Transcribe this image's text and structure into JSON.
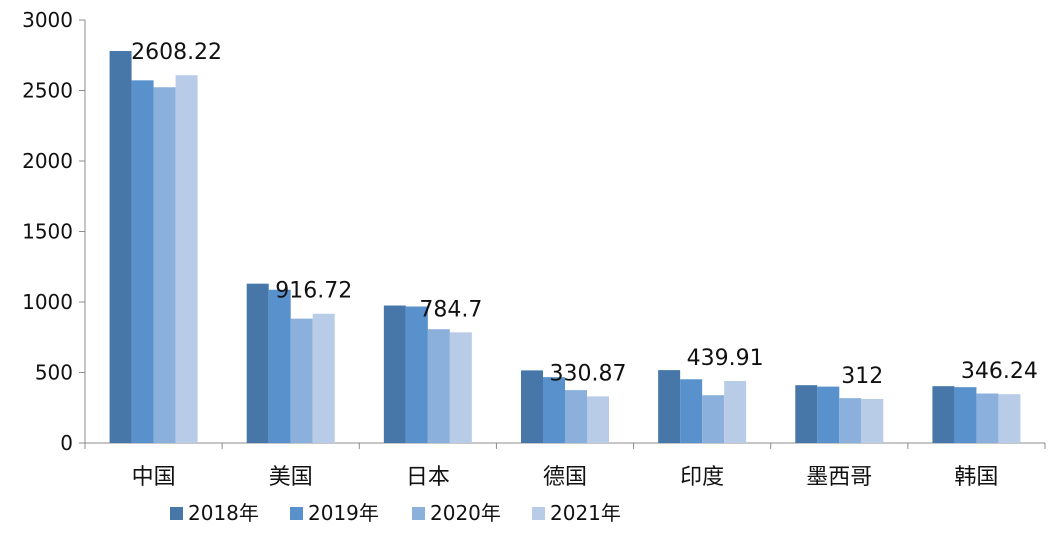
{
  "chart_data": {
    "type": "bar",
    "categories": [
      "中国",
      "美国",
      "日本",
      "德国",
      "印度",
      "墨西哥",
      "韩国"
    ],
    "series": [
      {
        "name": "2018年",
        "color": "#4677a8",
        "values": [
          2780,
          1130,
          975,
          515,
          517,
          410,
          403
        ]
      },
      {
        "name": "2019年",
        "color": "#5891cb",
        "values": [
          2572,
          1087,
          968,
          467,
          452,
          400,
          396
        ]
      },
      {
        "name": "2020年",
        "color": "#8bb0dc",
        "values": [
          2523,
          882,
          807,
          375,
          339,
          318,
          351
        ]
      },
      {
        "name": "2021年",
        "color": "#b8cce8",
        "values": [
          2608.22,
          916.72,
          784.7,
          330.87,
          439.91,
          312,
          346.24
        ]
      }
    ],
    "data_labels": {
      "series_index": 3,
      "texts": [
        "2608.22",
        "916.72",
        "784.7",
        "330.87",
        "439.91",
        "312",
        "346.24"
      ]
    },
    "ylim": [
      0,
      3000
    ],
    "yticks": [
      "0",
      "500",
      "1000",
      "1500",
      "2000",
      "2500",
      "3000"
    ],
    "ytick_values": [
      0,
      500,
      1000,
      1500,
      2000,
      2500,
      3000
    ],
    "grid": false,
    "legend_position": "bottom-left",
    "title": "",
    "xlabel": "",
    "ylabel": ""
  }
}
